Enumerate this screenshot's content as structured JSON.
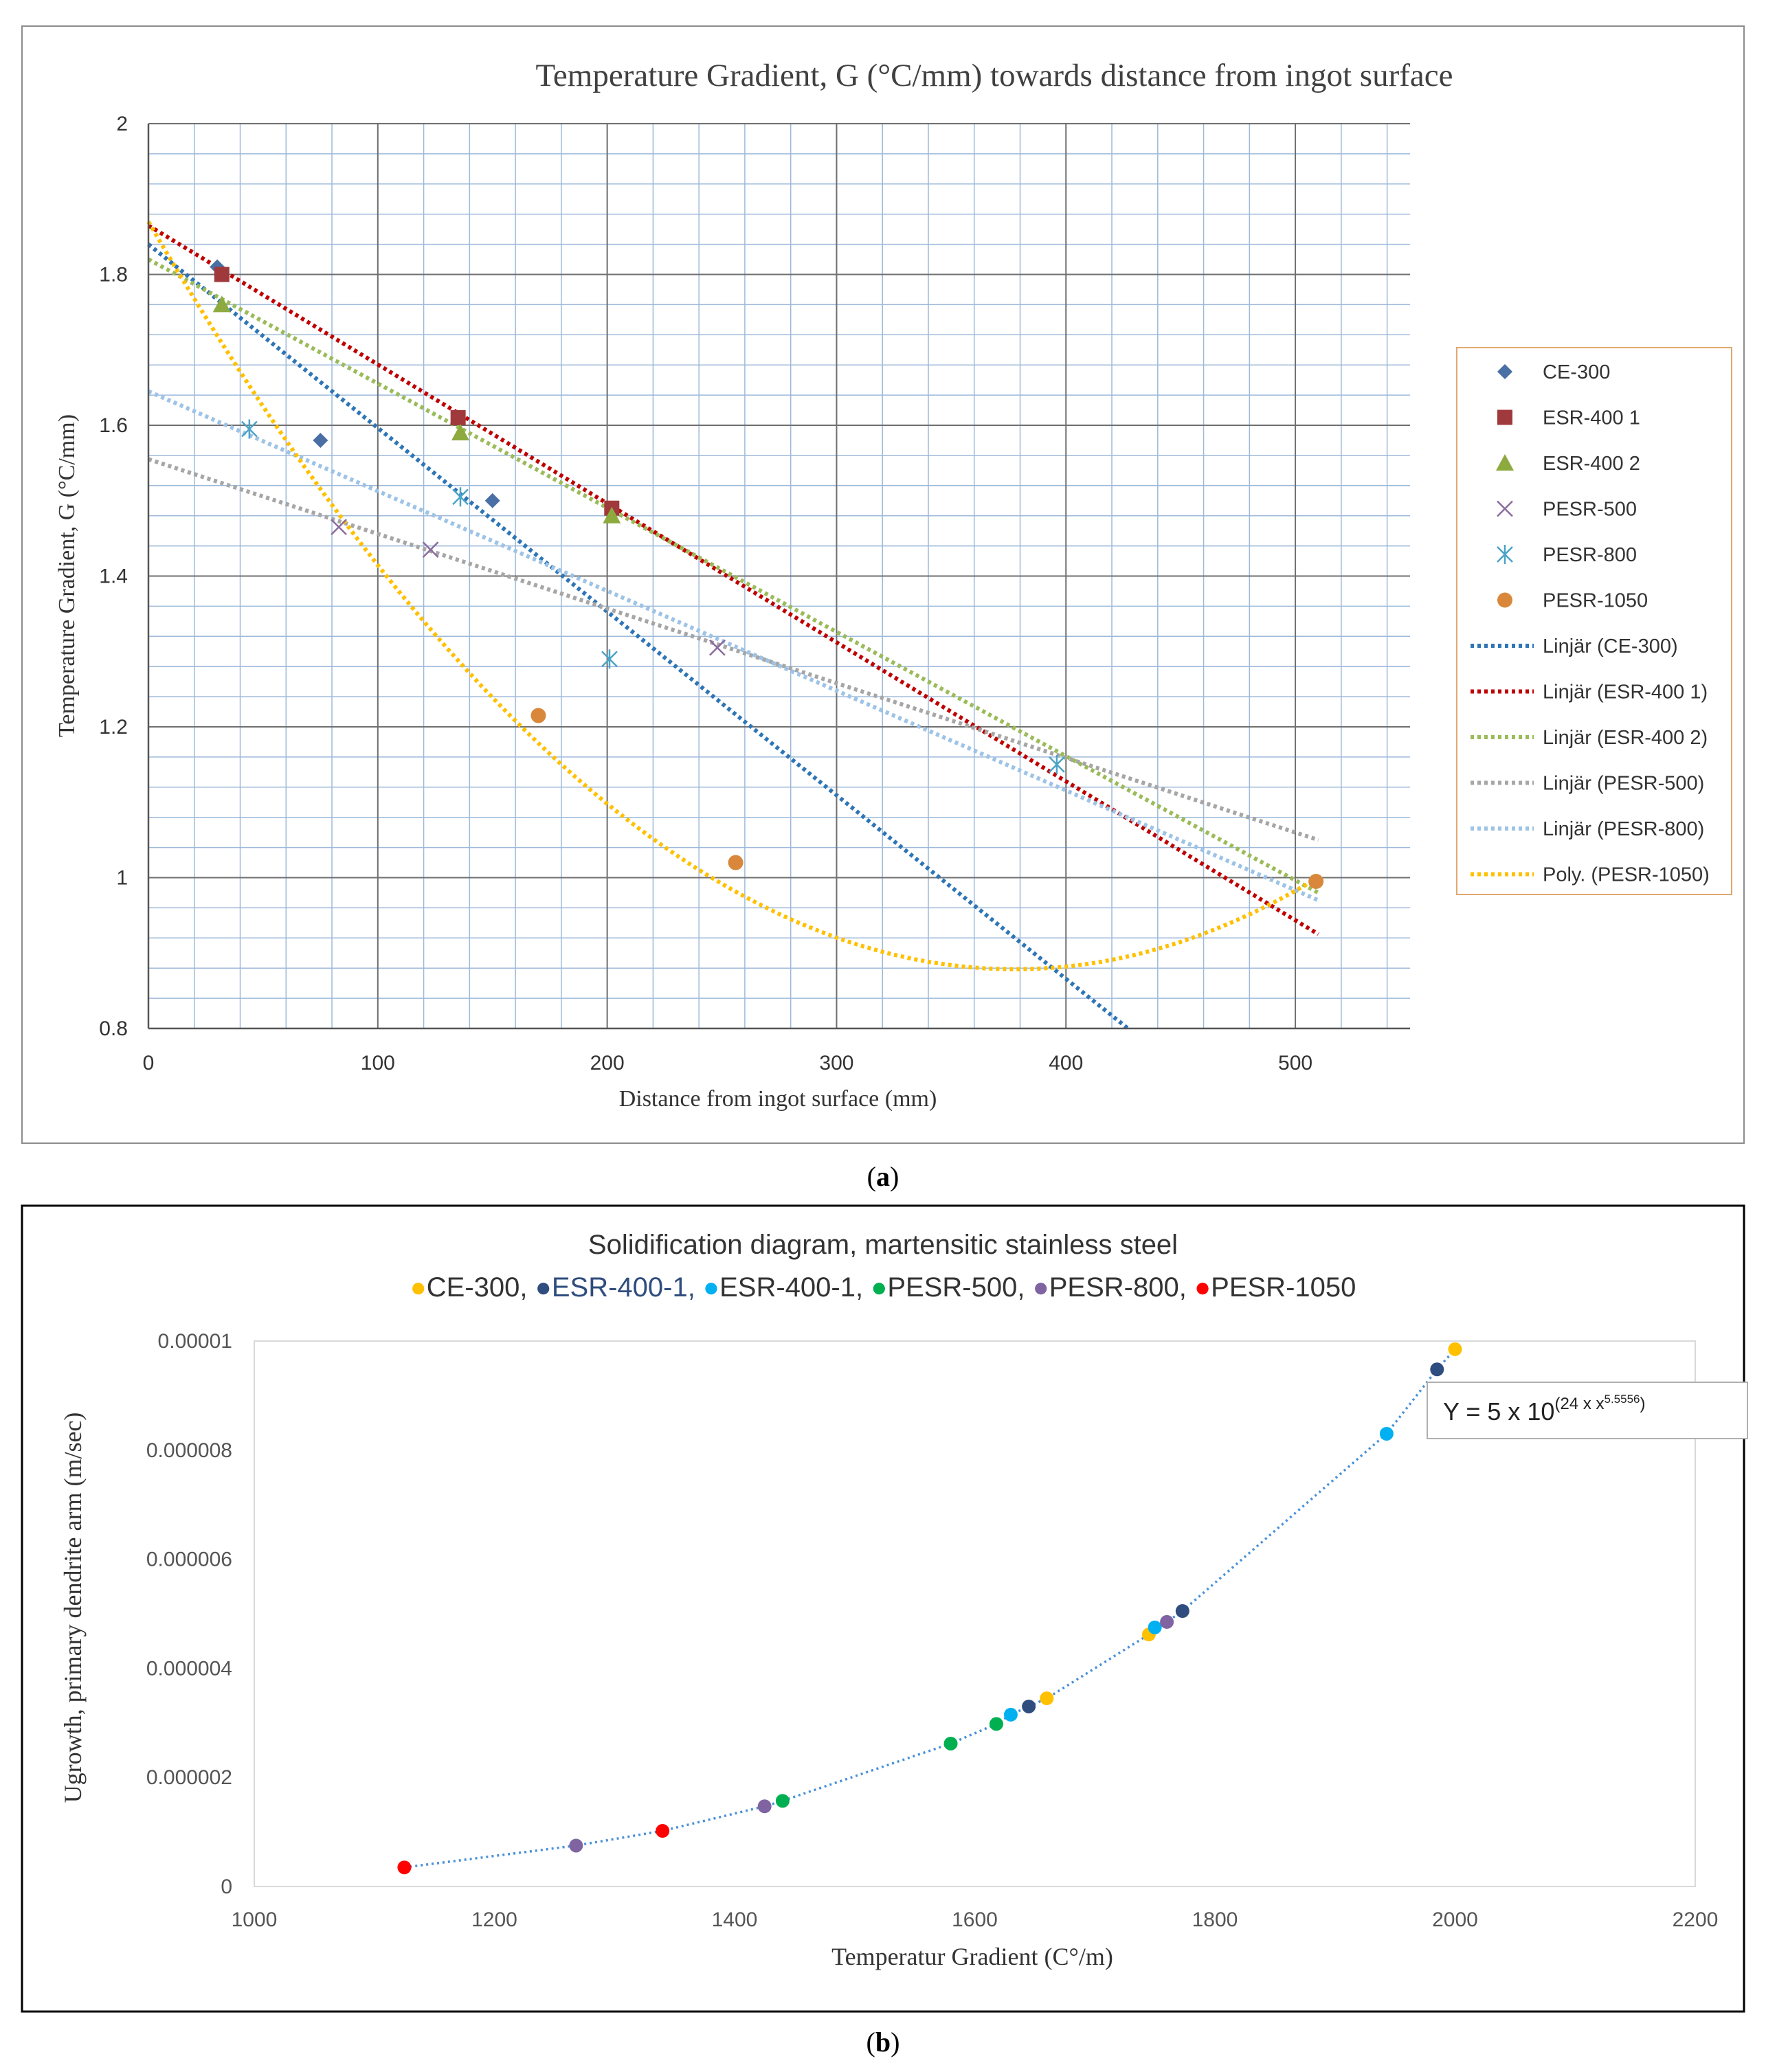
{
  "chart_data": [
    {
      "type": "scatter",
      "panel_label": "a",
      "title": "Temperature Gradient, G (°C/mm) towards distance from ingot surface",
      "xlabel": "Distance from ingot surface (mm)",
      "ylabel": "Temperature Gradient, G  (°C/mm)",
      "xlim": [
        0,
        550
      ],
      "ylim": [
        0.8,
        2.0
      ],
      "xticks": [
        0,
        100,
        200,
        300,
        400,
        500
      ],
      "xtick_labels": [
        "0",
        "100",
        "200",
        "300",
        "400",
        "500"
      ],
      "yticks": [
        0.8,
        1.0,
        1.2,
        1.4,
        1.6,
        1.8,
        2.0
      ],
      "ytick_labels": [
        "0.8",
        "1",
        "1.2",
        "1.4",
        "1.6",
        "1.8",
        "2"
      ],
      "grid": true,
      "legend_position": "right",
      "series": [
        {
          "name": "CE-300",
          "marker": "diamond",
          "color": "#4A6FA5",
          "x": [
            30,
            75,
            150
          ],
          "y": [
            1.81,
            1.58,
            1.5
          ]
        },
        {
          "name": "ESR-400 1",
          "marker": "square",
          "color": "#A0393B",
          "x": [
            32,
            135,
            202
          ],
          "y": [
            1.8,
            1.61,
            1.49
          ]
        },
        {
          "name": "ESR-400 2",
          "marker": "triangle",
          "color": "#8DAA3F",
          "x": [
            32,
            136,
            202
          ],
          "y": [
            1.76,
            1.59,
            1.48
          ]
        },
        {
          "name": "PESR-500",
          "marker": "x",
          "color": "#8B6C9E",
          "x": [
            83,
            123,
            248
          ],
          "y": [
            1.465,
            1.435,
            1.305
          ]
        },
        {
          "name": "PESR-800",
          "marker": "star",
          "color": "#4BA3C7",
          "x": [
            44,
            136,
            201,
            396
          ],
          "y": [
            1.595,
            1.505,
            1.29,
            1.15
          ]
        },
        {
          "name": "PESR-1050",
          "marker": "circle",
          "color": "#D9883B",
          "x": [
            170,
            256,
            509
          ],
          "y": [
            1.215,
            1.02,
            0.995
          ]
        }
      ],
      "trendlines": [
        {
          "name": "Linjär (CE-300)",
          "color": "#2E75B6",
          "kind": "linear",
          "x": [
            0,
            427
          ],
          "y": [
            1.84,
            0.8
          ]
        },
        {
          "name": "Linjär (ESR-400 1)",
          "color": "#C00000",
          "kind": "linear",
          "x": [
            0,
            510
          ],
          "y": [
            1.865,
            0.925
          ]
        },
        {
          "name": "Linjär (ESR-400 2)",
          "color": "#9BBB59",
          "kind": "linear",
          "x": [
            0,
            510
          ],
          "y": [
            1.82,
            0.98
          ]
        },
        {
          "name": "Linjär (PESR-500)",
          "color": "#A6A6A6",
          "kind": "linear",
          "x": [
            0,
            510
          ],
          "y": [
            1.555,
            1.05
          ]
        },
        {
          "name": "Linjär (PESR-800)",
          "color": "#9DC3E6",
          "kind": "linear",
          "x": [
            0,
            510
          ],
          "y": [
            1.645,
            0.97
          ]
        },
        {
          "name": "Poly. (PESR-1050)",
          "color": "#FFC000",
          "kind": "poly2",
          "coefficients": [
            1.87,
            -0.00525,
            6.95e-06
          ],
          "x_range": [
            0,
            510
          ]
        }
      ]
    },
    {
      "type": "scatter",
      "panel_label": "b",
      "title": "Solidification diagram, martensitic stainless steel",
      "legend_line": [
        "CE-300,",
        "ESR-400-1,",
        "ESR-400-1,",
        "PESR-500,",
        "PESR-800,",
        "PESR-1050"
      ],
      "xlabel": "Temperatur Gradient (C°/m)",
      "ylabel": "Ugrowth, primary dendrite arm (m/sec)",
      "xlim": [
        1000,
        2200
      ],
      "ylim": [
        0,
        1e-05
      ],
      "xticks": [
        1000,
        1200,
        1400,
        1600,
        1800,
        2000,
        2200
      ],
      "xtick_labels": [
        "1000",
        "1200",
        "1400",
        "1600",
        "1800",
        "2000",
        "2200"
      ],
      "yticks": [
        0,
        2e-06,
        4e-06,
        6e-06,
        8e-06,
        1e-05
      ],
      "ytick_labels": [
        "0",
        "0.000002",
        "0.000004",
        "0.000006",
        "0.000008",
        "0.00001"
      ],
      "grid": false,
      "annotation": {
        "base": "Y = 5 x 10",
        "exponent": "(24 x x",
        "inner_exponent": "5.5556",
        "close": ")"
      },
      "series": [
        {
          "name": "CE-300",
          "color": "#FFC000",
          "x": [
            1660,
            1745,
            2000
          ],
          "y": [
            3.45e-06,
            4.62e-06,
            9.85e-06
          ]
        },
        {
          "name": "ESR-400-1",
          "color": "#2F4D7E",
          "x": [
            1645,
            1773,
            1985
          ],
          "y": [
            3.3e-06,
            5.05e-06,
            9.48e-06
          ]
        },
        {
          "name": "ESR-400-1",
          "color": "#00B0F0",
          "x": [
            1630,
            1750,
            1943
          ],
          "y": [
            3.15e-06,
            4.75e-06,
            8.3e-06
          ]
        },
        {
          "name": "PESR-500",
          "color": "#00B050",
          "x": [
            1440,
            1580,
            1618
          ],
          "y": [
            1.57e-06,
            2.62e-06,
            2.98e-06
          ]
        },
        {
          "name": "PESR-800",
          "color": "#8064A2",
          "x": [
            1268,
            1425,
            1760
          ],
          "y": [
            7.5e-07,
            1.47e-06,
            4.85e-06
          ]
        },
        {
          "name": "PESR-1050",
          "color": "#FF0000",
          "x": [
            1125,
            1340
          ],
          "y": [
            3.5e-07,
            1.02e-06
          ]
        }
      ],
      "fit_color": "#4A90D9"
    }
  ],
  "captions": {
    "a": "a",
    "b": "b"
  }
}
